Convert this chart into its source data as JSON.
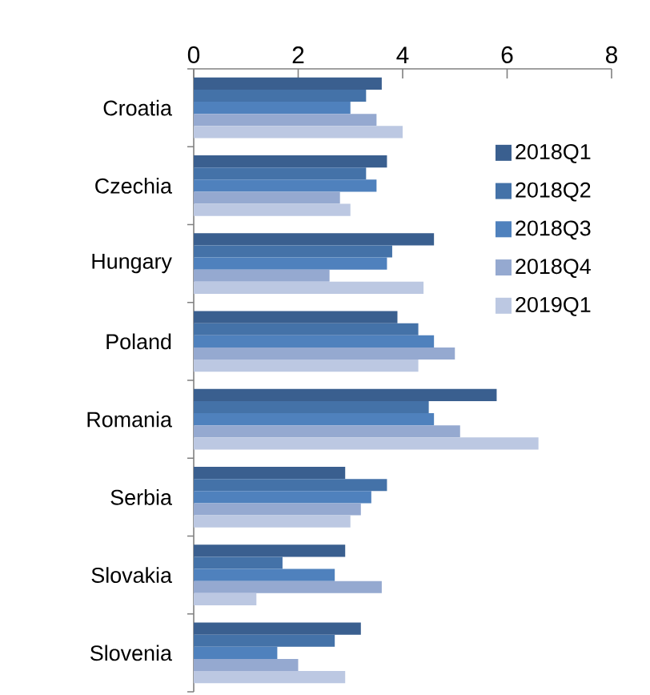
{
  "chart_data": {
    "type": "bar",
    "orientation": "horizontal",
    "categories": [
      "Croatia",
      "Czechia",
      "Hungary",
      "Poland",
      "Romania",
      "Serbia",
      "Slovakia",
      "Slovenia"
    ],
    "series": [
      {
        "name": "2018Q1",
        "color": "#3a5f8f",
        "values": [
          3.6,
          3.7,
          4.6,
          3.9,
          5.8,
          2.9,
          2.9,
          3.2
        ]
      },
      {
        "name": "2018Q2",
        "color": "#4472a8",
        "values": [
          3.3,
          3.3,
          3.8,
          4.3,
          4.5,
          3.7,
          1.7,
          2.7
        ]
      },
      {
        "name": "2018Q3",
        "color": "#4f81bd",
        "values": [
          3.0,
          3.5,
          3.7,
          4.6,
          4.6,
          3.4,
          2.7,
          1.6
        ]
      },
      {
        "name": "2018Q4",
        "color": "#95a9d0",
        "values": [
          3.5,
          2.8,
          2.6,
          5.0,
          5.1,
          3.2,
          3.6,
          2.0
        ]
      },
      {
        "name": "2019Q1",
        "color": "#bcc8e2",
        "values": [
          4.0,
          3.0,
          4.4,
          4.3,
          6.6,
          3.0,
          1.2,
          2.9
        ]
      }
    ],
    "xlim": [
      0,
      8
    ],
    "xticks": [
      0,
      2,
      4,
      6,
      8
    ],
    "grid": false,
    "legend": "top right"
  }
}
